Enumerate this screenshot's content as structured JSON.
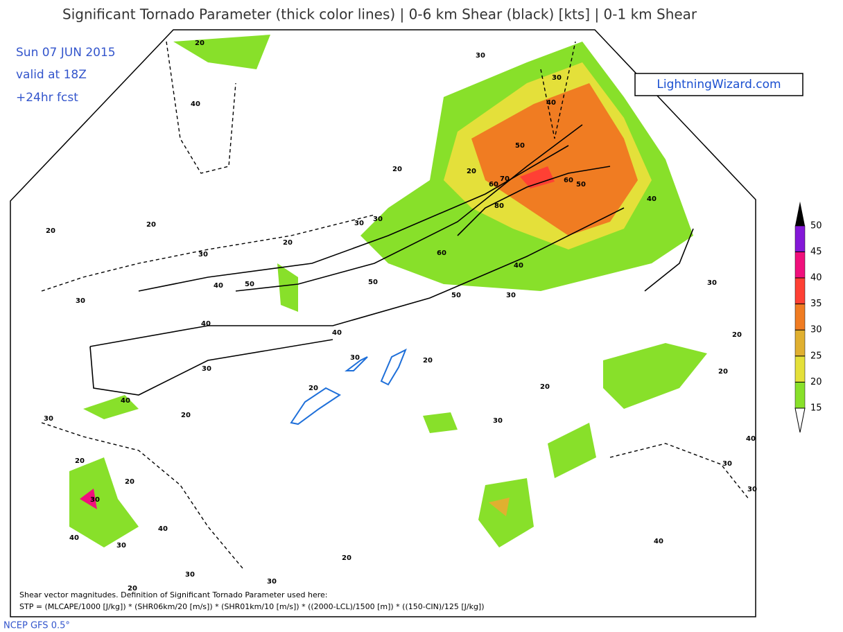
{
  "header": {
    "title": "Significant Tornado Parameter (thick color lines) | 0-6 km Shear (black) [kts] | 0-1 km Shear"
  },
  "run_info": [
    "Sun 07 JUN 2015",
    "valid at 18Z",
    "+24hr fcst"
  ],
  "logo": "LightningWizard.com",
  "legend": {
    "levels": [
      {
        "value": 15,
        "color": "#88e02a"
      },
      {
        "value": 20,
        "color": "#e4e03a"
      },
      {
        "value": 25,
        "color": "#e0b030"
      },
      {
        "value": 30,
        "color": "#f07c22"
      },
      {
        "value": 35,
        "color": "#ff4034"
      },
      {
        "value": 40,
        "color": "#f0107c"
      },
      {
        "value": 45,
        "color": "#8418d8"
      },
      {
        "value": 50,
        "color": "#000000"
      }
    ]
  },
  "contour_labels": [
    20,
    30,
    30,
    40,
    40,
    50,
    20,
    20,
    70,
    60,
    60,
    50,
    40,
    30,
    30,
    80,
    20,
    20,
    30,
    20,
    60,
    40,
    30,
    40,
    50,
    50,
    50,
    30,
    30,
    40,
    40,
    30,
    20,
    30,
    20,
    20,
    40,
    20,
    30,
    30,
    20,
    40,
    30,
    30,
    40,
    20,
    20,
    30,
    40,
    40,
    30,
    30,
    20,
    30,
    20,
    20
  ],
  "footnote": [
    "Shear vector magnitudes. Definition of Significant Tornado Parameter used here:",
    "STP = (MLCAPE/1000 [J/kg]) * (SHR06km/20 [m/s]) * (SHR01km/10 [m/s]) * ((2000-LCL)/1500 [m]) * ((150-CIN)/125 [J/kg])"
  ],
  "source": "NCEP GFS 0.5°"
}
